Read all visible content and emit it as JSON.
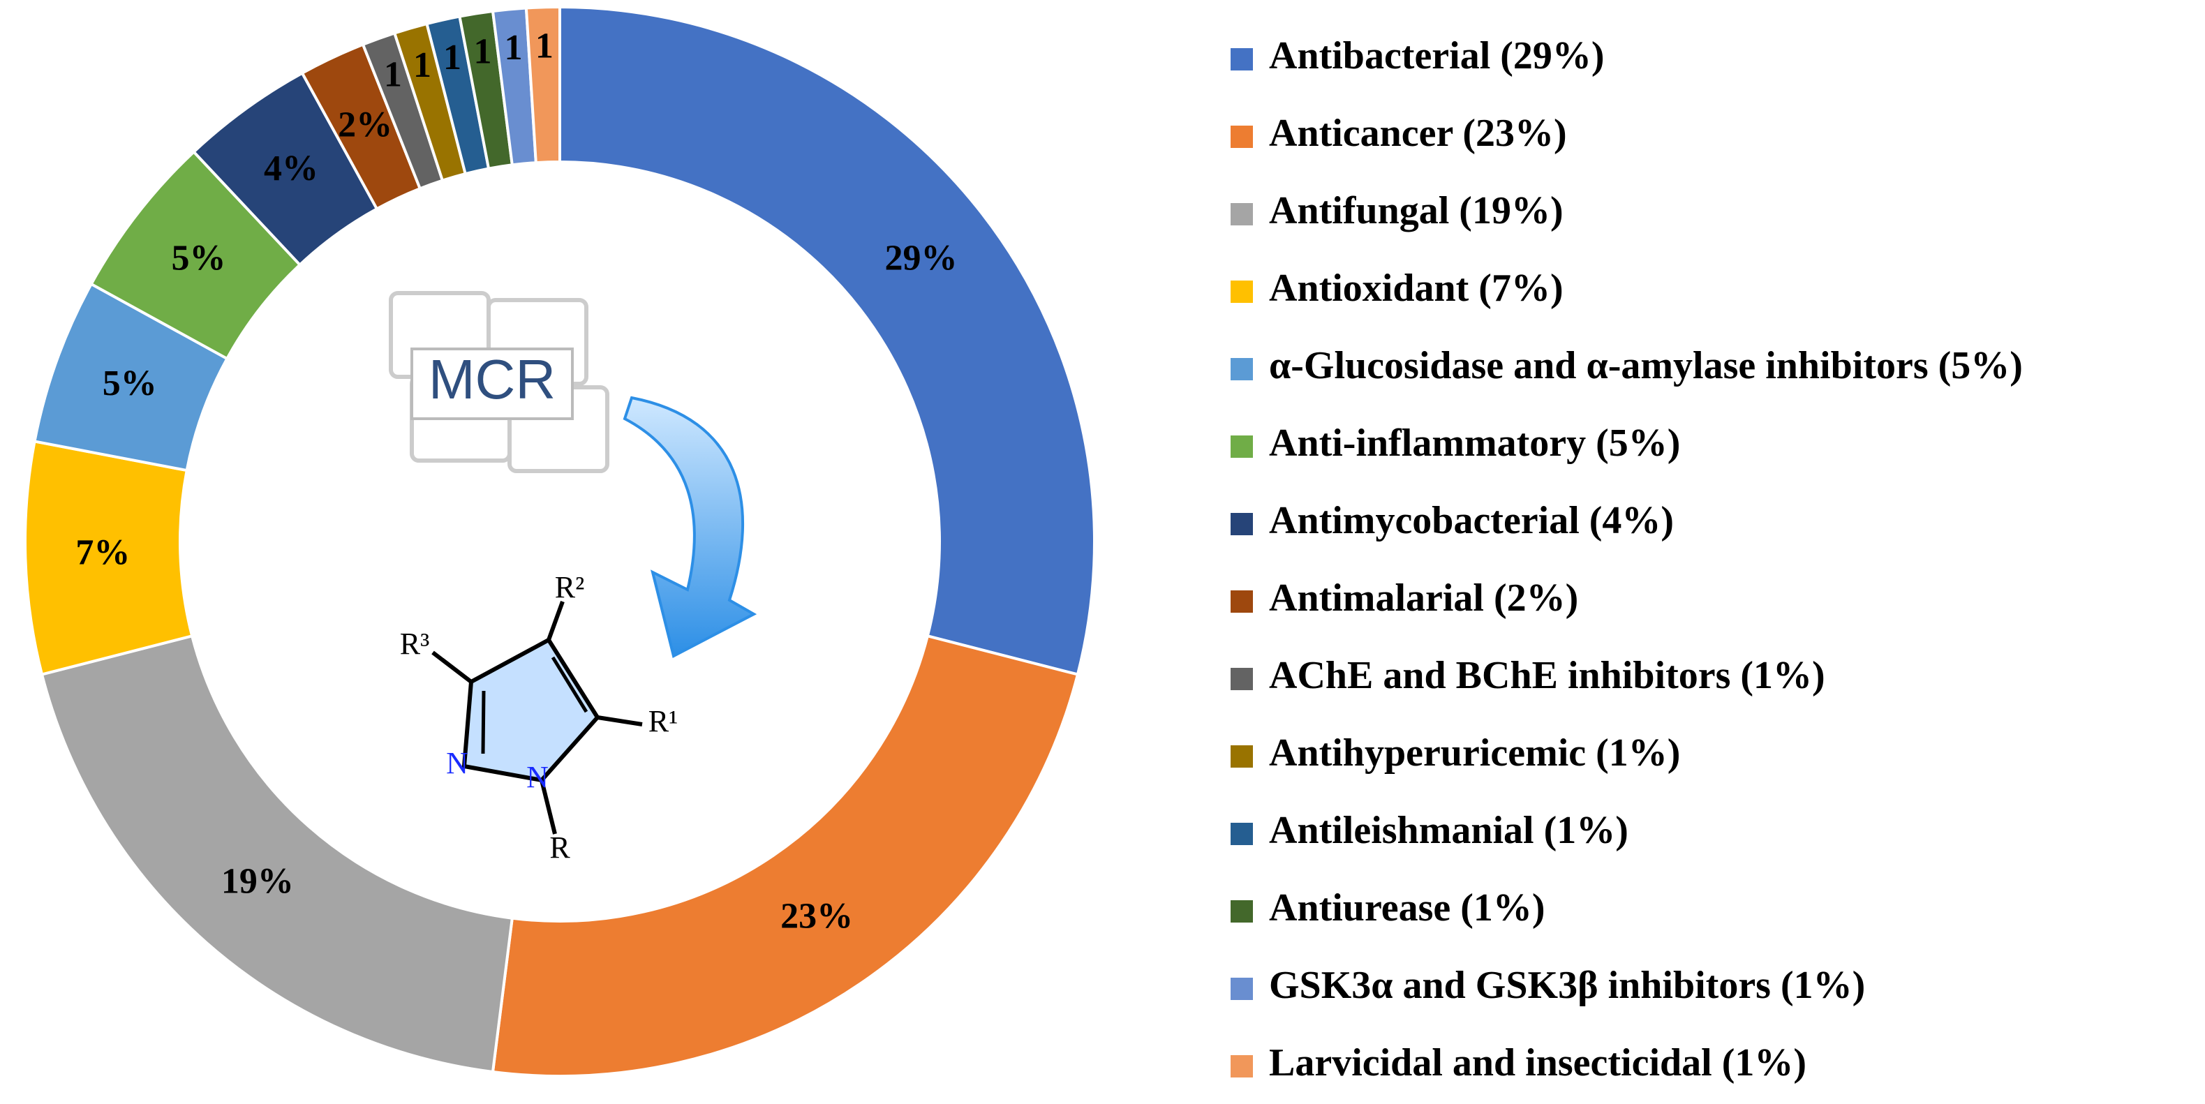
{
  "chart_data": {
    "type": "donut",
    "categories": [
      "Antibacterial (29%)",
      "Anticancer (23%)",
      "Antifungal (19%)",
      "Antioxidant (7%)",
      "α-Glucosidase and α-amylase inhibitors (5%)",
      "Anti-inflammatory (5%)",
      "Antimycobacterial (4%)",
      "Antimalarial (2%)",
      "AChE and BChE inhibitors (1%)",
      "Antihyperuricemic (1%)",
      "Antileishmanial (1%)",
      "Antiurease (1%)",
      "GSK3α and GSK3β inhibitors (1%)",
      "Larvicidal and insecticidal (1%)"
    ],
    "values": [
      29,
      23,
      19,
      7,
      5,
      5,
      4,
      2,
      1,
      1,
      1,
      1,
      1,
      1
    ],
    "value_labels": [
      "29%",
      "23%",
      "19%",
      "7%",
      "5%",
      "5%",
      "4%",
      "2%",
      "1",
      "1",
      "1",
      "1",
      "1",
      "1"
    ],
    "colors": [
      "#4472c4",
      "#ed7d31",
      "#a5a5a5",
      "#ffc000",
      "#5b9bd5",
      "#70ad47",
      "#264478",
      "#9e480e",
      "#636363",
      "#997300",
      "#255e91",
      "#43682b",
      "#698ed0",
      "#f1975a"
    ],
    "legend": "right"
  },
  "center_graphic": {
    "label": "MCR",
    "atoms": [
      "R³",
      "R²",
      "R¹",
      "R",
      "N",
      "N"
    ]
  }
}
